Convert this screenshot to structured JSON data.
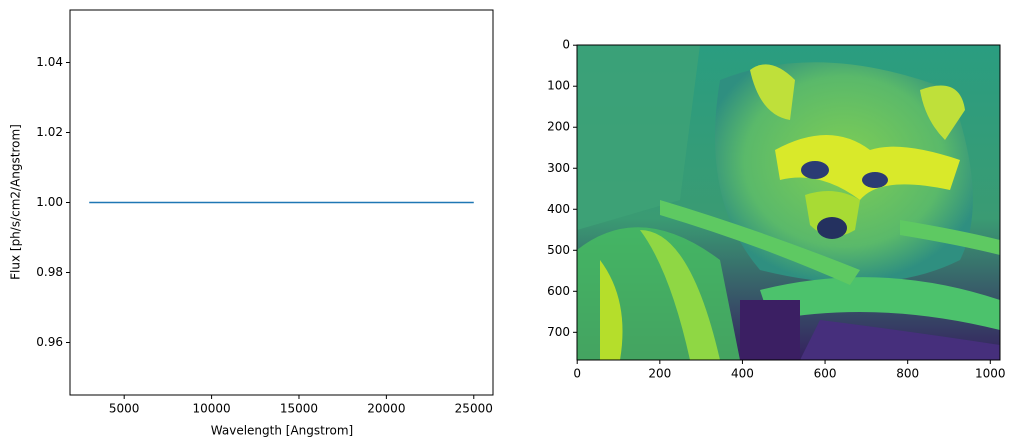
{
  "chart_data": [
    {
      "type": "line",
      "xlabel": "Wavelength [Angstrom]",
      "ylabel": "Flux [ph/s/cm2/Angstrom]",
      "x": [
        3000,
        25000
      ],
      "values": [
        1,
        1
      ],
      "color": "#1f77b4",
      "xlim": [
        1900,
        26100
      ],
      "xticks": [
        5000,
        10000,
        15000,
        20000,
        25000
      ],
      "ylim": [
        0.945,
        1.055
      ],
      "yticks": [
        0.96,
        0.98,
        {
          "value": 1,
          "label": "1.00"
        },
        1.02,
        1.04
      ]
    },
    {
      "type": "image",
      "xlim": [
        -0.5,
        1023.5
      ],
      "xticks": [
        0,
        200,
        400,
        600,
        800,
        1000
      ],
      "ylim": [
        767.5,
        -0.5
      ],
      "yticks": [
        0,
        100,
        200,
        300,
        400,
        500,
        600,
        700
      ]
    }
  ]
}
